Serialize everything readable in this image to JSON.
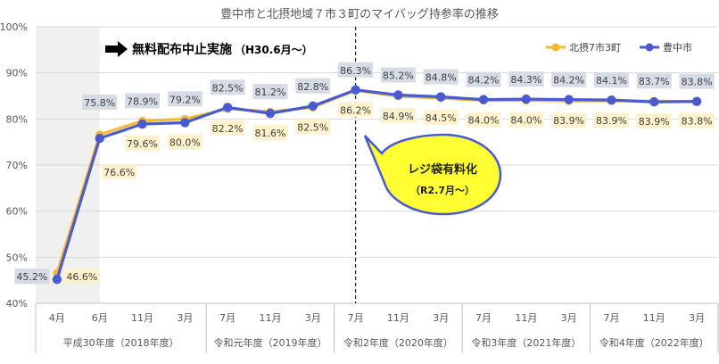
{
  "chart_data": {
    "type": "line",
    "title": "豊中市と北摂地域７市３町のマイバッグ持参率の推移",
    "months": [
      "4月",
      "6月",
      "11月",
      "3月",
      "7月",
      "11月",
      "3月",
      "7月",
      "11月",
      "3月",
      "7月",
      "11月",
      "3月",
      "7月",
      "11月",
      "3月"
    ],
    "fiscal_years": [
      {
        "label": "平成30年度（2018年度）",
        "start": 0,
        "end": 3
      },
      {
        "label": "令和元年度（2019年度）",
        "start": 4,
        "end": 6
      },
      {
        "label": "令和2年度（2020年度）",
        "start": 7,
        "end": 9
      },
      {
        "label": "令和3年度（2021年度）",
        "start": 10,
        "end": 12
      },
      {
        "label": "令和4年度（2022年度）",
        "start": 13,
        "end": 15
      }
    ],
    "ylim": [
      40,
      100
    ],
    "yticks": [
      "40%",
      "50%",
      "60%",
      "70%",
      "80%",
      "90%",
      "100%"
    ],
    "grid": true,
    "legend_position": "top-right",
    "series": [
      {
        "name": "北摂7市3町",
        "color": "#F5B82E",
        "values": [
          46.6,
          76.6,
          79.6,
          80.0,
          82.2,
          81.6,
          82.5,
          86.2,
          84.9,
          84.5,
          84.0,
          84.0,
          83.9,
          83.9,
          83.9,
          83.8
        ],
        "labels": [
          "46.6%",
          "76.6%",
          "79.6%",
          "80.0%",
          "82.2%",
          "81.6%",
          "82.5%",
          "86.2%",
          "84.9%",
          "84.5%",
          "84.0%",
          "84.0%",
          "83.9%",
          "83.9%",
          "83.9%",
          "83.8%"
        ]
      },
      {
        "name": "豊中市",
        "color": "#4A5BD0",
        "values": [
          45.2,
          75.8,
          78.9,
          79.2,
          82.5,
          81.2,
          82.8,
          86.3,
          85.2,
          84.8,
          84.2,
          84.3,
          84.2,
          84.1,
          83.7,
          83.8
        ],
        "labels": [
          "45.2%",
          "75.8%",
          "78.9%",
          "79.2%",
          "82.5%",
          "81.2%",
          "82.8%",
          "86.3%",
          "85.2%",
          "84.8%",
          "84.2%",
          "84.3%",
          "84.2%",
          "84.1%",
          "83.7%",
          "83.8%"
        ]
      }
    ],
    "annotations": {
      "free_distribution_stop": "無料配布中止実施",
      "free_distribution_stop_date": "（H30.6月～）",
      "arrow_icon": "right-arrow-icon",
      "bag_charge_title": "レジ袋有料化",
      "bag_charge_date": "（R2.7月～）",
      "bag_charge_fill": "#FFFF33",
      "bag_charge_border": "#4A5BD0"
    }
  }
}
